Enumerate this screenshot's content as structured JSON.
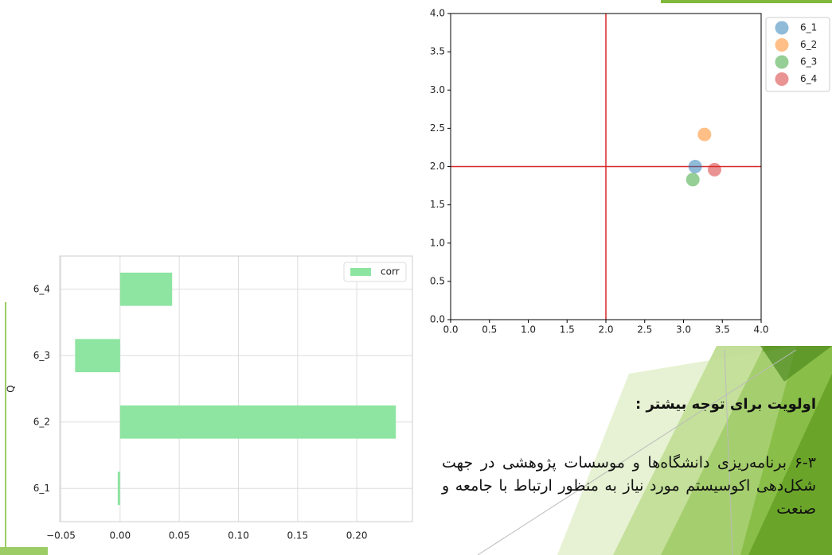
{
  "chart_data": [
    {
      "type": "scatter",
      "xlim": [
        0,
        4
      ],
      "ylim": [
        0,
        4
      ],
      "xticks": [
        {
          "value": 0,
          "label": "0.0"
        },
        {
          "value": 0.5,
          "label": "0.5"
        },
        {
          "value": 1,
          "label": "1.0"
        },
        {
          "value": 1.5,
          "label": "1.5"
        },
        {
          "value": 2,
          "label": "2.0"
        },
        {
          "value": 2.5,
          "label": "2.5"
        },
        {
          "value": 3,
          "label": "3.0"
        },
        {
          "value": 3.5,
          "label": "3.5"
        },
        {
          "value": 4,
          "label": "4.0"
        }
      ],
      "yticks": [
        {
          "value": 0,
          "label": "0.0"
        },
        {
          "value": 0.5,
          "label": "0.5"
        },
        {
          "value": 1,
          "label": "1.0"
        },
        {
          "value": 1.5,
          "label": "1.5"
        },
        {
          "value": 2,
          "label": "2.0"
        },
        {
          "value": 2.5,
          "label": "2.5"
        },
        {
          "value": 3,
          "label": "3.0"
        },
        {
          "value": 3.5,
          "label": "3.5"
        },
        {
          "value": 4,
          "label": "4.0"
        }
      ],
      "reference_lines": {
        "x": 2,
        "y": 2,
        "color": "#d62728"
      },
      "alpha": 0.5,
      "legend": "outside-upper-right",
      "series": [
        {
          "name": "6_1",
          "color": "#1f77b4",
          "x": [
            3.15
          ],
          "values": [
            2.0
          ]
        },
        {
          "name": "6_2",
          "color": "#ff7f0e",
          "x": [
            3.27
          ],
          "values": [
            2.42
          ]
        },
        {
          "name": "6_3",
          "color": "#2ca02c",
          "x": [
            3.12
          ],
          "values": [
            1.83
          ]
        },
        {
          "name": "6_4",
          "color": "#d62728",
          "x": [
            3.4
          ],
          "values": [
            1.96
          ]
        }
      ]
    },
    {
      "type": "hbar",
      "ylabel": "Q",
      "categories": [
        "6_1",
        "6_2",
        "6_3",
        "6_4"
      ],
      "series": [
        {
          "name": "corr",
          "color": "#8de5a1",
          "values": [
            -0.002,
            0.233,
            -0.038,
            0.044
          ]
        }
      ],
      "xlim": [
        -0.051,
        0.247
      ],
      "xticks": [
        {
          "value": -0.05,
          "label": "−0.05"
        },
        {
          "value": 0,
          "label": "0.00"
        },
        {
          "value": 0.05,
          "label": "0.05"
        },
        {
          "value": 0.1,
          "label": "0.10"
        },
        {
          "value": 0.15,
          "label": "0.15"
        },
        {
          "value": 0.2,
          "label": "0.20"
        }
      ],
      "grid": true,
      "legend": "upper-right"
    }
  ],
  "slide": {
    "heading": "اولویت برای توجه بیشتر :",
    "body": "۶-۳   برنامه‌ریزی دانشگاه‌ها و موسسات پژوهشی در جهت شکل‌دهی اکوسیستم مورد نیاز به منظور ارتباط با جامعه و صنعت"
  }
}
